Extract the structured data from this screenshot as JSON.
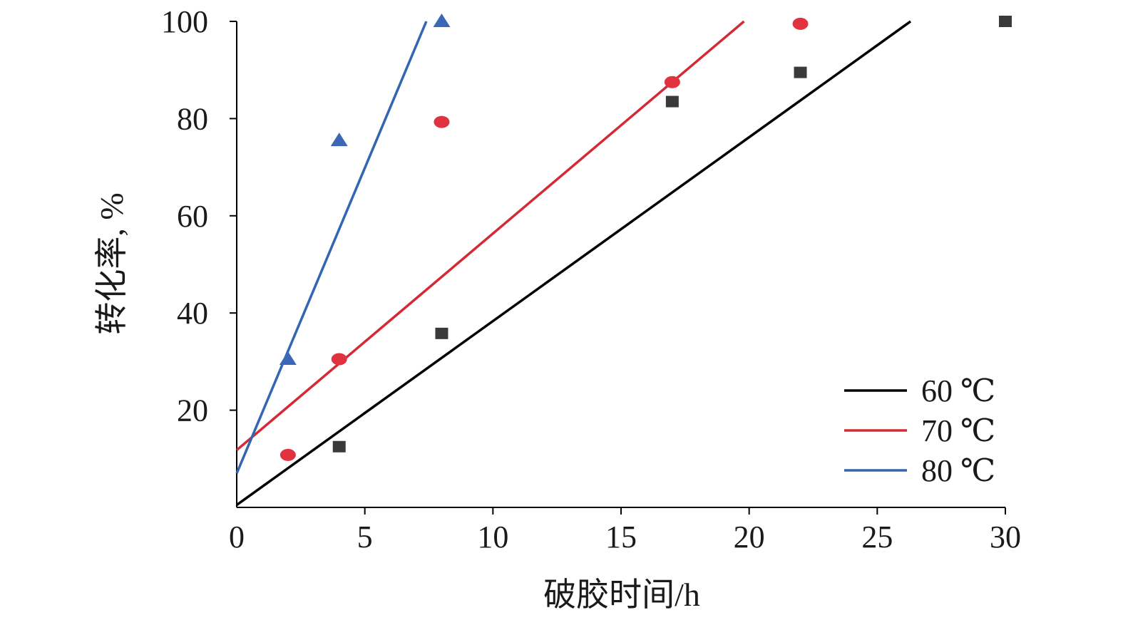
{
  "chart_data": {
    "type": "scatter",
    "xlabel": "破胶时间/h",
    "ylabel": "转化率, %",
    "xlim": [
      0,
      30
    ],
    "ylim": [
      0,
      100
    ],
    "x_ticks": [
      "0",
      "5",
      "10",
      "15",
      "20",
      "25",
      "30"
    ],
    "y_ticks": [
      "20",
      "40",
      "60",
      "80",
      "100"
    ],
    "grid": false,
    "legend_position": "bottom-right",
    "series": [
      {
        "name": "60 ℃",
        "color": "#000000",
        "marker_color": "#3a3a3a",
        "marker": "square",
        "points": [
          [
            4,
            12.5
          ],
          [
            8,
            35.8
          ],
          [
            17,
            83.5
          ],
          [
            22,
            89.5
          ],
          [
            30,
            100
          ]
        ],
        "fit_line": [
          [
            0,
            0.5
          ],
          [
            26.3,
            100
          ]
        ]
      },
      {
        "name": "70 ℃",
        "color": "#d42a35",
        "marker_color": "#e0323f",
        "marker": "circle",
        "points": [
          [
            2,
            10.8
          ],
          [
            4,
            30.5
          ],
          [
            8,
            79.3
          ],
          [
            17,
            87.5
          ],
          [
            22,
            99.5
          ]
        ],
        "fit_line": [
          [
            0,
            11.8
          ],
          [
            19.8,
            100
          ]
        ]
      },
      {
        "name": "80 ℃",
        "color": "#3366b0",
        "marker_color": "#3a68b6",
        "marker": "triangle",
        "points": [
          [
            2,
            30.5
          ],
          [
            4,
            75.5
          ],
          [
            8,
            100
          ]
        ],
        "fit_line": [
          [
            0,
            7
          ],
          [
            7.4,
            100
          ]
        ]
      }
    ]
  }
}
